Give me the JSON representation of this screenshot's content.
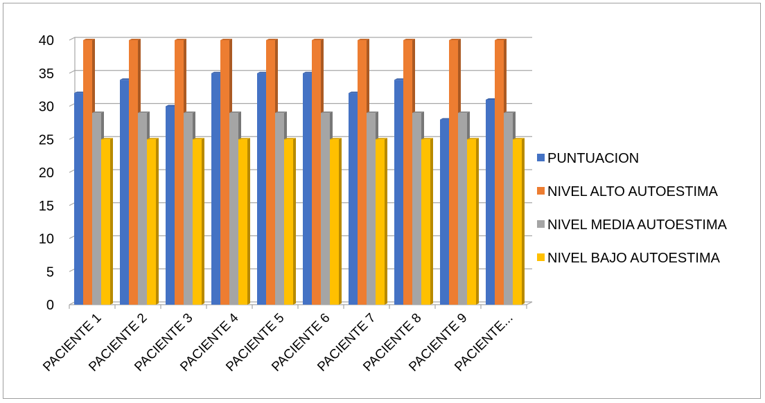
{
  "chart_data": {
    "type": "bar",
    "title": "",
    "xlabel": "",
    "ylabel": "",
    "ylim": [
      0,
      40
    ],
    "yticks": [
      0,
      5,
      10,
      15,
      20,
      25,
      30,
      35,
      40
    ],
    "grid": true,
    "legend_position": "right",
    "categories": [
      "PACIENTE 1",
      "PACIENTE 2",
      "PACIENTE 3",
      "PACIENTE 4",
      "PACIENTE 5",
      "PACIENTE 6",
      "PACIENTE 7",
      "PACIENTE 8",
      "PACIENTE 9",
      "PACIENTE..."
    ],
    "series": [
      {
        "name": "PUNTUACION",
        "color": "#4472c4",
        "values": [
          32,
          34,
          30,
          35,
          35,
          35,
          32,
          34,
          28,
          31
        ]
      },
      {
        "name": "NIVEL ALTO AUTOESTIMA",
        "color": "#ed7d31",
        "values": [
          40,
          40,
          40,
          40,
          40,
          40,
          40,
          40,
          40,
          40
        ]
      },
      {
        "name": "NIVEL MEDIA AUTOESTIMA",
        "color": "#a5a5a5",
        "values": [
          29,
          29,
          29,
          29,
          29,
          29,
          29,
          29,
          29,
          29
        ]
      },
      {
        "name": "NIVEL BAJO AUTOESTIMA",
        "color": "#ffc000",
        "values": [
          25,
          25,
          25,
          25,
          25,
          25,
          25,
          25,
          25,
          25
        ]
      }
    ]
  }
}
